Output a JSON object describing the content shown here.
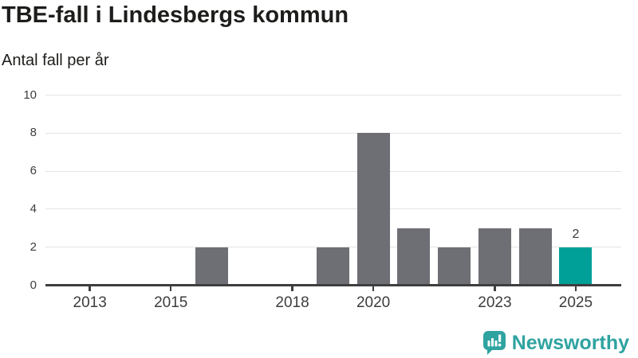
{
  "chart_data": {
    "type": "bar",
    "title": "TBE-fall i Lindesbergs kommun",
    "subtitle": "Antal fall per år",
    "categories": [
      "2013",
      "2014",
      "2015",
      "2016",
      "2017",
      "2018",
      "2019",
      "2020",
      "2021",
      "2022",
      "2023",
      "2024",
      "2025"
    ],
    "values": [
      0,
      0,
      0,
      2,
      0,
      0,
      2,
      8,
      3,
      2,
      3,
      3,
      2
    ],
    "xlabel": "",
    "ylabel": "Antal fall per år",
    "ylim": [
      0,
      10
    ],
    "yticks": [
      0,
      2,
      4,
      6,
      8,
      10
    ],
    "xtick_labels": [
      "2013",
      "2015",
      "2018",
      "2020",
      "2023",
      "2025"
    ],
    "grid": true,
    "legend": "none",
    "highlight_category": "2025",
    "value_labels": [
      {
        "category": "2025",
        "text": "2"
      }
    ],
    "colors": {
      "bar": "#6e6e75",
      "highlight": "#00a099",
      "axis": "#3e3e3e",
      "gridline": "#e3e3e3",
      "tick_text": "#3d3d3d",
      "title_text": "#1d1d1b"
    }
  },
  "branding": {
    "logo_text": "Newsworthy",
    "logo_color": "#2fa3a0",
    "logo_icon": "bar-chart-speech-bubble-icon"
  }
}
